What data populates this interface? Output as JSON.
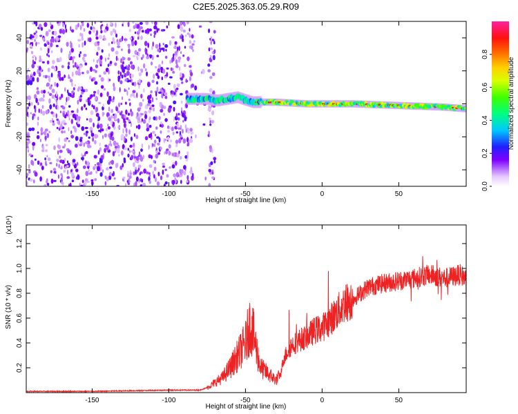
{
  "title": "C2E5.2025.363.05.29.R09",
  "colors": {
    "snr_line": "#ee2222",
    "grid": "#000000",
    "background": "#ffffff"
  },
  "chart_data": [
    {
      "type": "heatmap",
      "xlabel": "Height of straight line (km)",
      "ylabel": "Frequency (Hz)",
      "xlim": [
        -193,
        94
      ],
      "ylim": [
        -50,
        50
      ],
      "xticks": [
        -150,
        -100,
        -50,
        0,
        50
      ],
      "yticks": [
        -40,
        -20,
        0,
        20,
        40
      ],
      "colorbar": {
        "label": "Normalized spectral amplitude",
        "range": [
          0.0,
          1.0
        ],
        "ticks": [
          "0.0",
          "0.2",
          "0.4",
          "0.6",
          "0.8"
        ],
        "tick_values": [
          0.0,
          0.2,
          0.4,
          0.6,
          0.8
        ],
        "colormap": "rainbow (white-violet-blue-cyan-green-yellow-orange-red-magenta)"
      },
      "signal_track": {
        "description_points": [
          [
            -85,
            3
          ],
          [
            -75,
            3
          ],
          [
            -68,
            2
          ],
          [
            -55,
            4
          ],
          [
            -45,
            1
          ],
          [
            -30,
            1
          ],
          [
            -10,
            0
          ],
          [
            0,
            0
          ],
          [
            20,
            0
          ],
          [
            50,
            -1
          ],
          [
            80,
            -2
          ],
          [
            94,
            -3
          ]
        ]
      },
      "noise_region_x": [
        -193,
        -70
      ]
    },
    {
      "type": "line",
      "xlabel": "Height of straight line (km)",
      "ylabel": "SNR (10 * v/v)",
      "y_multiplier": "(x10⁴)",
      "xlim": [
        -193,
        94
      ],
      "ylim": [
        0,
        1.35
      ],
      "xticks": [
        -150,
        -100,
        -50,
        0,
        50
      ],
      "yticks": [
        "0.2",
        "0.4",
        "0.6",
        "0.8",
        "1.0",
        "1.2"
      ],
      "ytick_values": [
        0.2,
        0.4,
        0.6,
        0.8,
        1.0,
        1.2
      ],
      "series": [
        {
          "x": [
            -193,
            -150,
            -100,
            -80,
            -75,
            -70,
            -65,
            -60,
            -55,
            -50,
            -47,
            -45,
            -42,
            -40,
            -35,
            -30,
            -27,
            -25,
            -20,
            -15,
            -10,
            -5,
            0,
            5,
            10,
            15,
            20,
            25,
            30,
            40,
            50,
            60,
            70,
            80,
            90,
            94
          ],
          "values": [
            0.01,
            0.01,
            0.02,
            0.02,
            0.04,
            0.08,
            0.12,
            0.2,
            0.3,
            0.4,
            0.55,
            0.48,
            0.3,
            0.2,
            0.15,
            0.1,
            0.15,
            0.28,
            0.38,
            0.42,
            0.45,
            0.5,
            0.52,
            0.58,
            0.65,
            0.72,
            0.75,
            0.8,
            0.85,
            0.88,
            0.9,
            0.92,
            0.95,
            0.92,
            0.95,
            0.92
          ]
        }
      ]
    }
  ]
}
